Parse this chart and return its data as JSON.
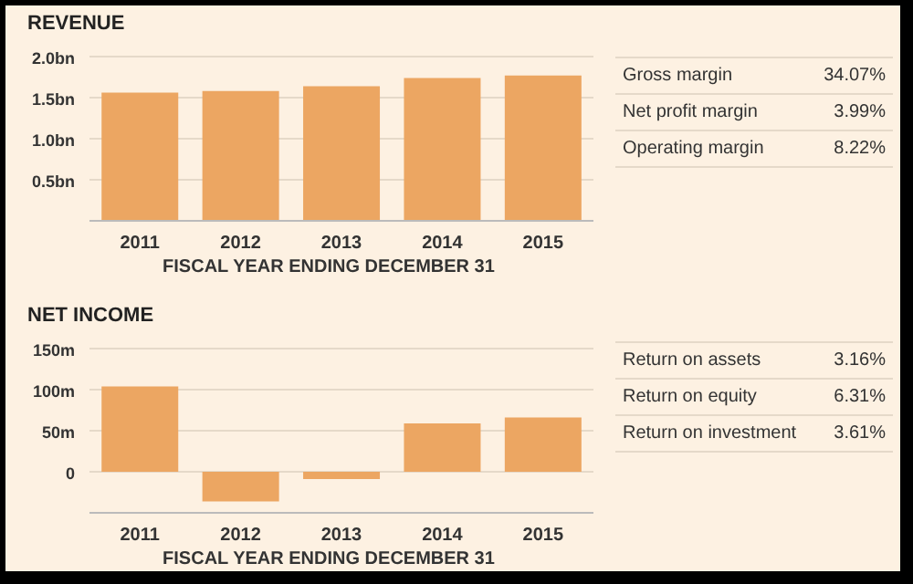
{
  "chart_data": [
    {
      "type": "bar",
      "title": "REVENUE",
      "xlabel": "FISCAL YEAR ENDING DECEMBER 31",
      "categories": [
        "2011",
        "2012",
        "2013",
        "2014",
        "2015"
      ],
      "values": [
        1.56,
        1.58,
        1.64,
        1.74,
        1.77
      ],
      "color": "#eca662",
      "ylim": [
        0,
        2
      ],
      "yticks": [
        {
          "value": 0,
          "label": null
        },
        {
          "value": 0.5,
          "label": "0.5bn"
        },
        {
          "value": 1,
          "label": "1.0bn"
        },
        {
          "value": 1.5,
          "label": "1.5bn"
        },
        {
          "value": 2,
          "label": "2.0bn"
        }
      ],
      "grid": "y"
    },
    {
      "type": "other",
      "categories": [
        "Gross margin",
        "Net profit margin",
        "Operating margin"
      ],
      "value_labels": [
        "34.07%",
        "3.99%",
        "8.22%"
      ]
    },
    {
      "type": "bar",
      "title": "NET INCOME",
      "xlabel": "FISCAL YEAR ENDING DECEMBER 31",
      "categories": [
        "2011",
        "2012",
        "2013",
        "2014",
        "2015"
      ],
      "values": [
        104,
        -36,
        -9,
        59,
        66
      ],
      "color": "#eca662",
      "ylim": [
        -50,
        150
      ],
      "yticks": [
        {
          "value": -50,
          "label": null
        },
        0,
        {
          "value": 50,
          "label": "50m"
        },
        {
          "value": 100,
          "label": "100m"
        },
        {
          "value": 150,
          "label": "150m"
        }
      ],
      "grid": "y"
    },
    {
      "type": "other",
      "categories": [
        "Return on assets",
        "Return on equity",
        "Return on investment"
      ],
      "value_labels": [
        "3.16%",
        "6.31%",
        "3.61%"
      ]
    }
  ]
}
